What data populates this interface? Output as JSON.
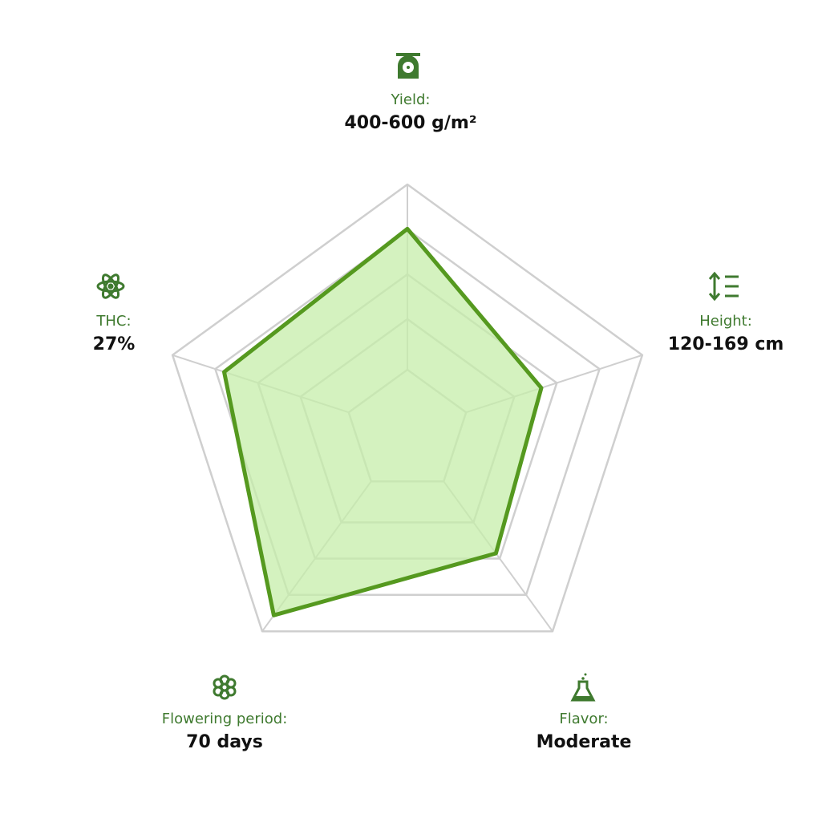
{
  "chart_data": {
    "type": "radar",
    "categories": [
      "Yield:",
      "Height:",
      "Flavor:",
      "Flowering period:",
      "THC:"
    ],
    "details": [
      "400-600 g/m²",
      "120-169 cm",
      "Moderate",
      "70 days",
      "27%"
    ],
    "values": [
      82,
      57,
      61,
      92,
      78
    ],
    "rlim": [
      0,
      100
    ],
    "color": "#55991f",
    "fill": "#c5eeaa",
    "label_color": "#3f7a2f",
    "grid_color": "#cfcfcf"
  }
}
